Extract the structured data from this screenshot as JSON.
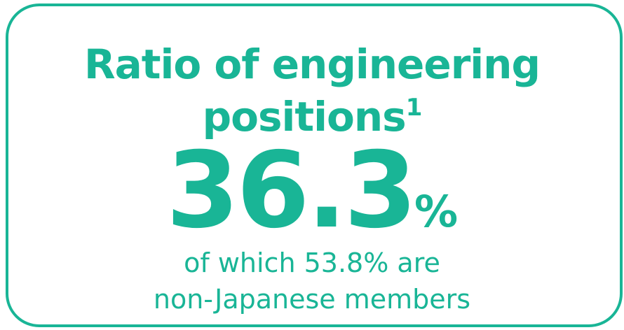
{
  "title": {
    "lines": [
      "Ratio of engineering",
      "positions"
    ],
    "footnote_mark": "1"
  },
  "value": {
    "number": 36.3,
    "unit": "%"
  },
  "caption": {
    "lines": [
      "of which 53.8% are",
      "non-Japanese members"
    ]
  }
}
